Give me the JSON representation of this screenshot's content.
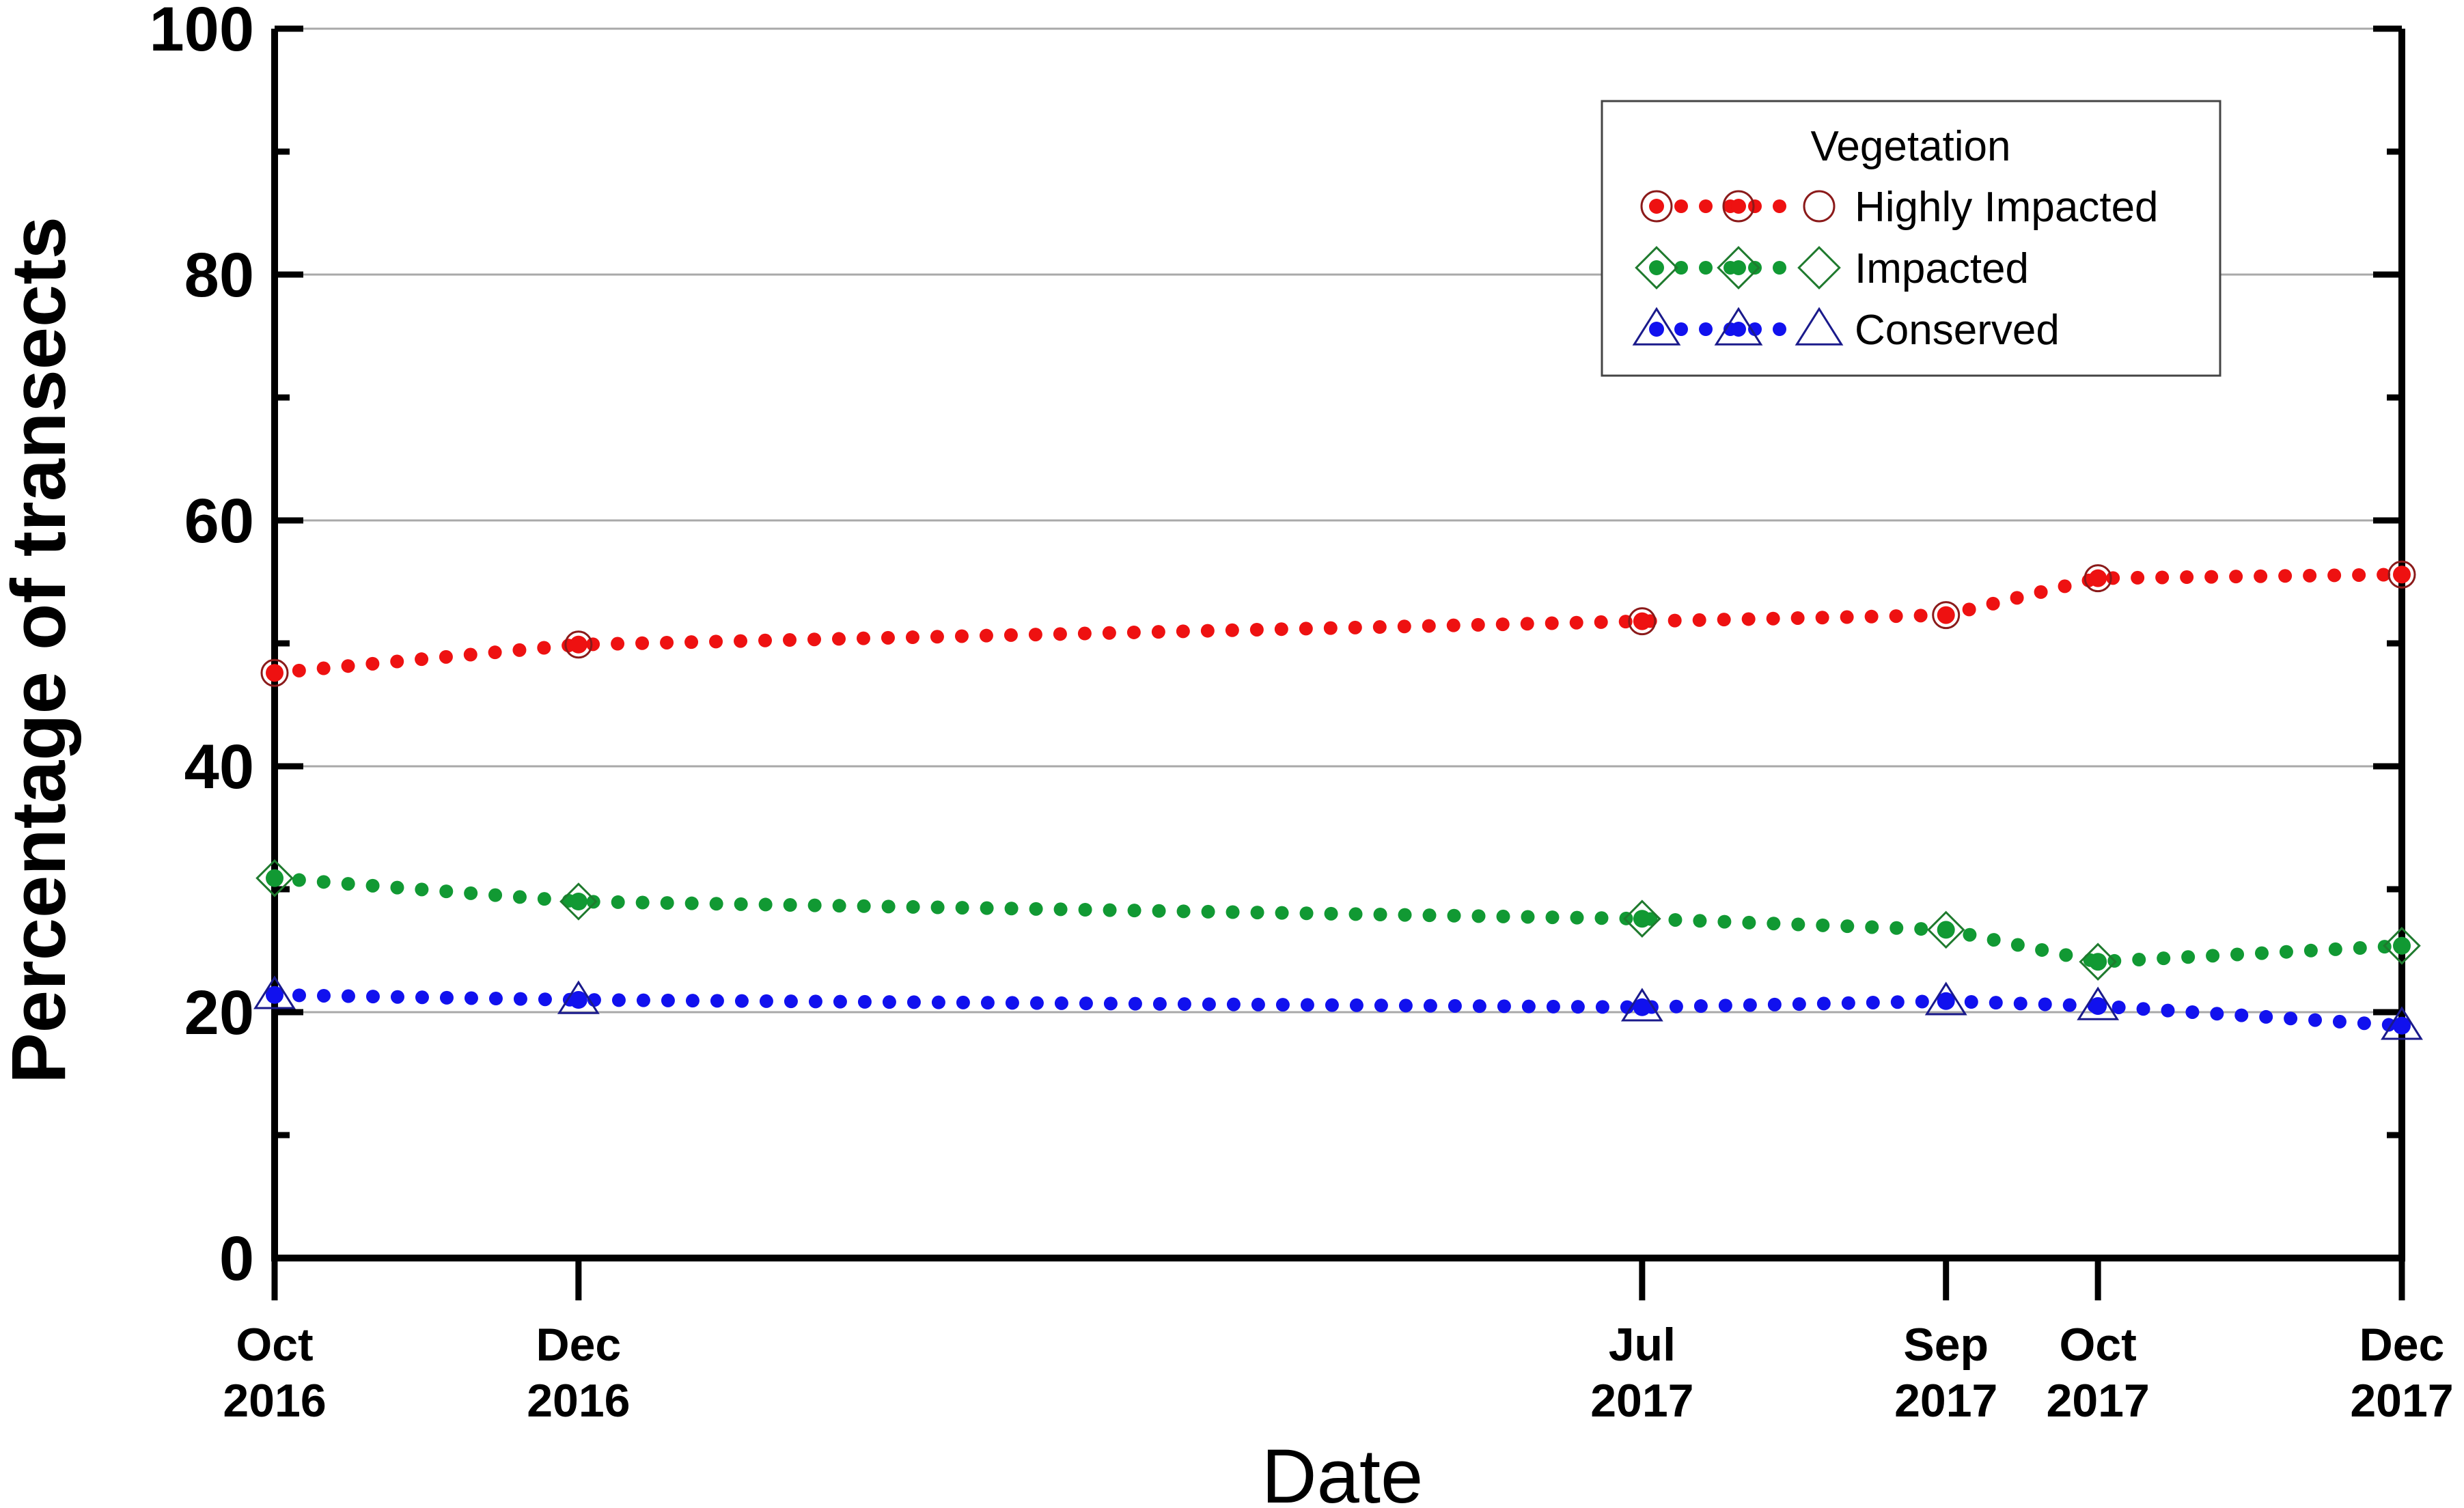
{
  "chart_data": {
    "type": "line",
    "title": "",
    "xlabel": "Date",
    "ylabel": "Percentage of transects",
    "ylim": [
      0,
      100
    ],
    "y_ticks": [
      0,
      20,
      40,
      60,
      80,
      100
    ],
    "y_tick_labels": [
      "0",
      "20",
      "40",
      "60",
      "80",
      "100"
    ],
    "x": [
      0,
      2,
      9,
      11,
      12,
      14
    ],
    "x_tick_labels": [
      {
        "month": "Oct",
        "year": "2016"
      },
      {
        "month": "Dec",
        "year": "2016"
      },
      {
        "month": "Jul",
        "year": "2017"
      },
      {
        "month": "Sep",
        "year": "2017"
      },
      {
        "month": "Oct",
        "year": "2017"
      },
      {
        "month": "Dec",
        "year": "2017"
      }
    ],
    "grid": true,
    "legend": {
      "title": "Vegetation",
      "position": "top-right"
    },
    "series": [
      {
        "name": "Highly Impacted",
        "color": "#ee1111",
        "marker_color": "#8b1a1a",
        "marker": "circle",
        "values": [
          47.6,
          49.9,
          51.8,
          52.3,
          55.3,
          55.6
        ]
      },
      {
        "name": "Impacted",
        "color": "#119933",
        "marker_color": "#1f7a2e",
        "marker": "diamond",
        "values": [
          30.9,
          29.0,
          27.6,
          26.7,
          24.1,
          25.4
        ]
      },
      {
        "name": "Conserved",
        "color": "#1111ee",
        "marker_color": "#1a1a8b",
        "marker": "triangle",
        "values": [
          21.4,
          21.0,
          20.4,
          20.9,
          20.5,
          18.9
        ]
      }
    ]
  }
}
